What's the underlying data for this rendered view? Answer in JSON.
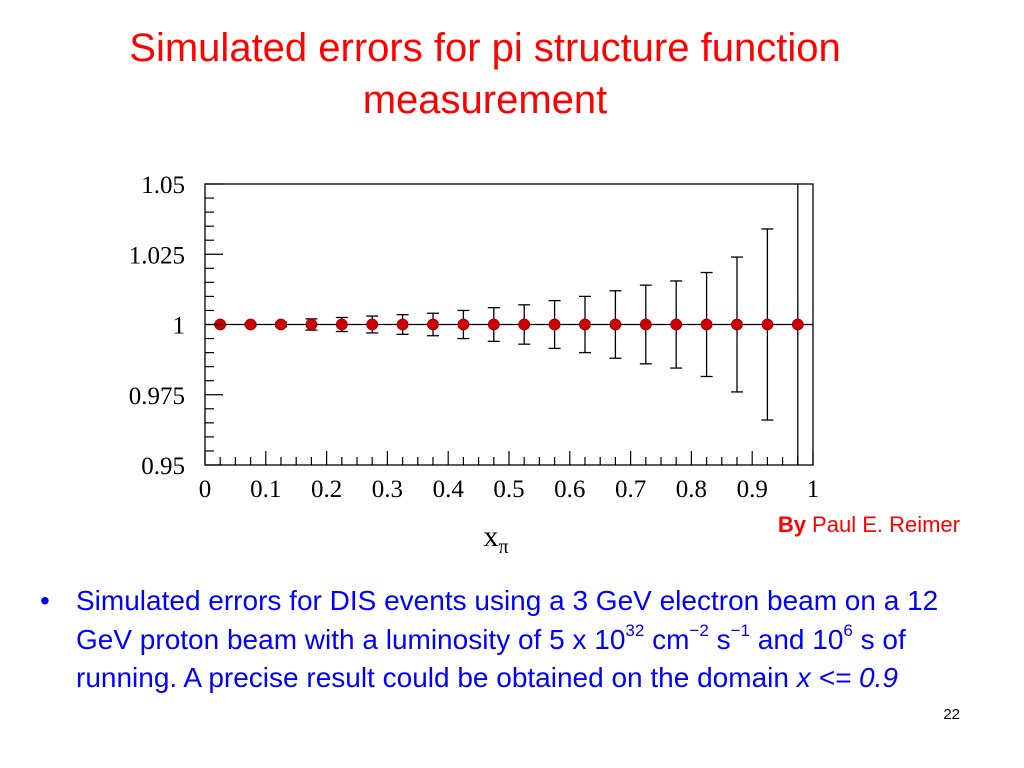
{
  "slide": {
    "title_line1": "Simulated errors for pi structure function",
    "title_line2": "measurement",
    "credit_by": "By",
    "credit_name": " Paul E. Reimer",
    "page_number": "22",
    "bullet_symbol": "•",
    "bullet_text": {
      "p1": "Simulated errors for DIS events using a 3 GeV electron beam on a 12 GeV proton beam with a luminosity of 5  x 10",
      "sup1": "32",
      "p2": " cm",
      "sup2": "−2",
      "p3": " s",
      "sup3": "−1",
      "p4": " and 10",
      "sup4": "6",
      "p5": " s of running. A precise result could be obtained on the domain ",
      "italic": "x <= 0.9"
    },
    "colors": {
      "title": "#ff0000",
      "body": "#0000ff",
      "marker": "#cc0000"
    }
  },
  "chart_data": {
    "type": "scatter",
    "title": "",
    "xlabel_main": "x",
    "xlabel_sub": "π",
    "ylabel": "",
    "xlim": [
      0,
      1
    ],
    "ylim": [
      0.95,
      1.05
    ],
    "x_ticks": [
      "0",
      "0.1",
      "0.2",
      "0.3",
      "0.4",
      "0.5",
      "0.6",
      "0.7",
      "0.8",
      "0.9",
      "1"
    ],
    "y_ticks": [
      "1.05",
      "1.025",
      "1",
      "0.975",
      "0.95"
    ],
    "reference_line": 1,
    "grid": false,
    "series": [
      {
        "x": [
          0.025,
          0.075,
          0.125,
          0.175,
          0.225,
          0.275,
          0.325,
          0.375,
          0.425,
          0.475,
          0.525,
          0.575,
          0.625,
          0.675,
          0.725,
          0.775,
          0.825,
          0.875,
          0.925,
          0.975
        ],
        "y": [
          1,
          1,
          1,
          1,
          1,
          1,
          1,
          1,
          1,
          1,
          1,
          1,
          1,
          1,
          1,
          1,
          1,
          1,
          1,
          1
        ],
        "err": [
          0.0003,
          0.0005,
          0.0008,
          0.002,
          0.0025,
          0.003,
          0.0035,
          0.004,
          0.005,
          0.006,
          0.007,
          0.0085,
          0.01,
          0.012,
          0.014,
          0.0155,
          0.0185,
          0.024,
          0.034,
          0.06
        ]
      }
    ]
  }
}
